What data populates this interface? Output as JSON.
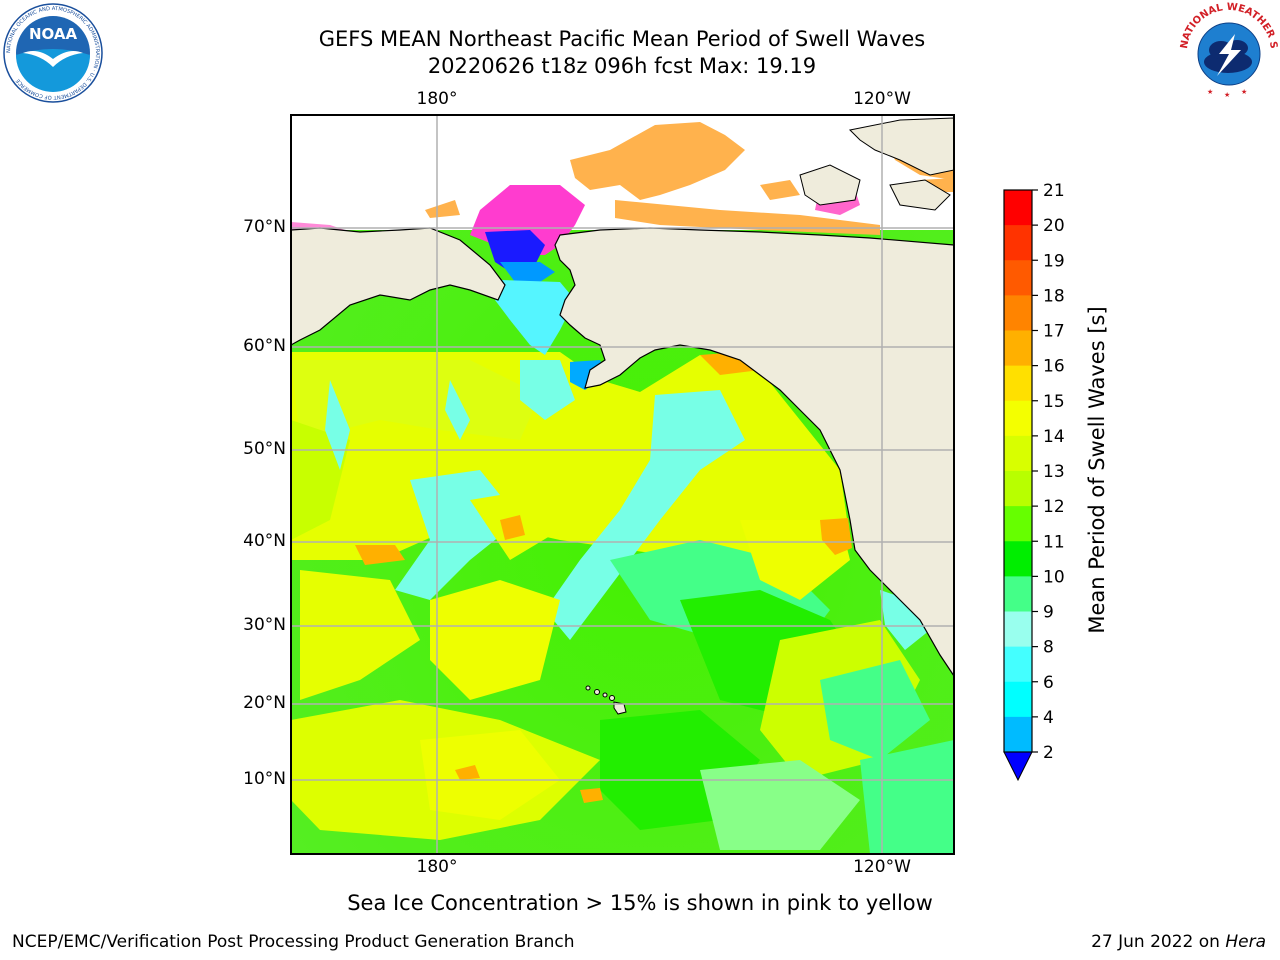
{
  "header": {
    "title_line1": "GEFS MEAN Northeast Pacific Mean Period of Swell Waves",
    "title_line2": "20220626 t18z 096h fcst   Max: 19.19"
  },
  "map": {
    "lon_labels": [
      "180°",
      "120°W"
    ],
    "lat_labels": [
      "70°N",
      "60°N",
      "50°N",
      "40°N",
      "30°N",
      "20°N",
      "10°N"
    ],
    "ocean_base_color": "#66ee33",
    "land_color": "#efecdc"
  },
  "colorbar": {
    "label": "Mean Period of Swell Waves [s]",
    "ticks": [
      "21",
      "20",
      "19",
      "18",
      "17",
      "16",
      "15",
      "14",
      "13",
      "12",
      "11",
      "10",
      "9",
      "8",
      "6",
      "4",
      "2"
    ],
    "colors": [
      "#ff0000",
      "#ff3300",
      "#ff5a00",
      "#ff8400",
      "#ffb000",
      "#ffe000",
      "#f4ff00",
      "#d8ff00",
      "#b8ff00",
      "#66ff00",
      "#00ee00",
      "#44ff88",
      "#99ffee",
      "#44ffff",
      "#00ffff",
      "#00bbff",
      "#0066ff"
    ],
    "extend_color": "#0000ff"
  },
  "footer": {
    "caption": "Sea Ice Concentration > 15% is shown in pink to yellow",
    "credit": "NCEP/EMC/Verification Post Processing Product Generation Branch",
    "date_prefix": "27 Jun 2022 on ",
    "date_machine": "Hera"
  },
  "logos": {
    "noaa_text": "NOAA",
    "noaa_ring_text": "NATIONAL OCEANIC AND ATMOSPHERIC ADMINISTRATION · U.S. DEPARTMENT OF COMMERCE",
    "nws_ring_text": "NATIONAL WEATHER SERVICE"
  }
}
